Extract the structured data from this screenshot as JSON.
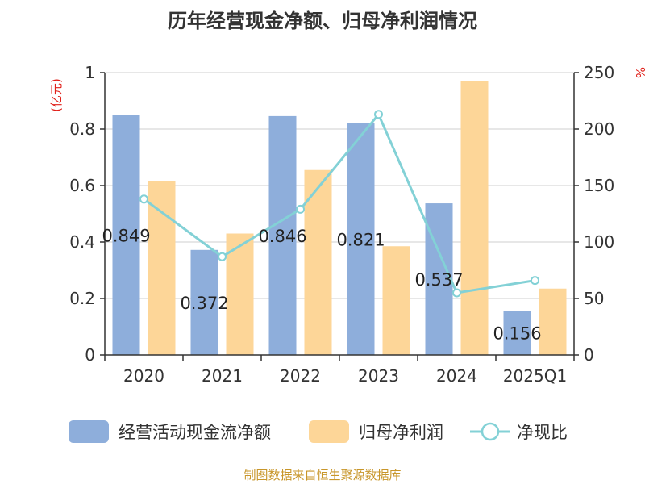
{
  "chart_data": {
    "type": "bar",
    "title": "历年经营现金净额、归母净利润情况",
    "categories": [
      "2020",
      "2021",
      "2022",
      "2023",
      "2024",
      "2025Q1"
    ],
    "left_axis": {
      "unit_label": "(亿元)",
      "ylim": [
        0,
        1
      ],
      "ticks": [
        "0",
        "0.2",
        "0.4",
        "0.6",
        "0.8",
        "1"
      ]
    },
    "right_axis": {
      "unit_label": "%",
      "ylim": [
        0,
        250
      ],
      "ticks": [
        "0",
        "50",
        "100",
        "150",
        "200",
        "250"
      ]
    },
    "series": [
      {
        "name": "经营活动现金流净额",
        "kind": "bar",
        "axis": "left",
        "color": "#8eaedb",
        "values": [
          0.849,
          0.372,
          0.846,
          0.821,
          0.537,
          0.156
        ],
        "labels": [
          "0.849",
          "0.372",
          "0.846",
          "0.821",
          "0.537",
          "0.156"
        ]
      },
      {
        "name": "归母净利润",
        "kind": "bar",
        "axis": "left",
        "color": "#fdd698",
        "values": [
          0.615,
          0.43,
          0.655,
          0.385,
          0.97,
          0.235
        ]
      },
      {
        "name": "净现比",
        "kind": "line",
        "axis": "right",
        "color": "#83d1d6",
        "values": [
          138,
          87,
          129,
          213,
          55,
          66
        ]
      }
    ],
    "grid": true,
    "legend": "bottom",
    "source": "制图数据来自恒生聚源数据库"
  }
}
